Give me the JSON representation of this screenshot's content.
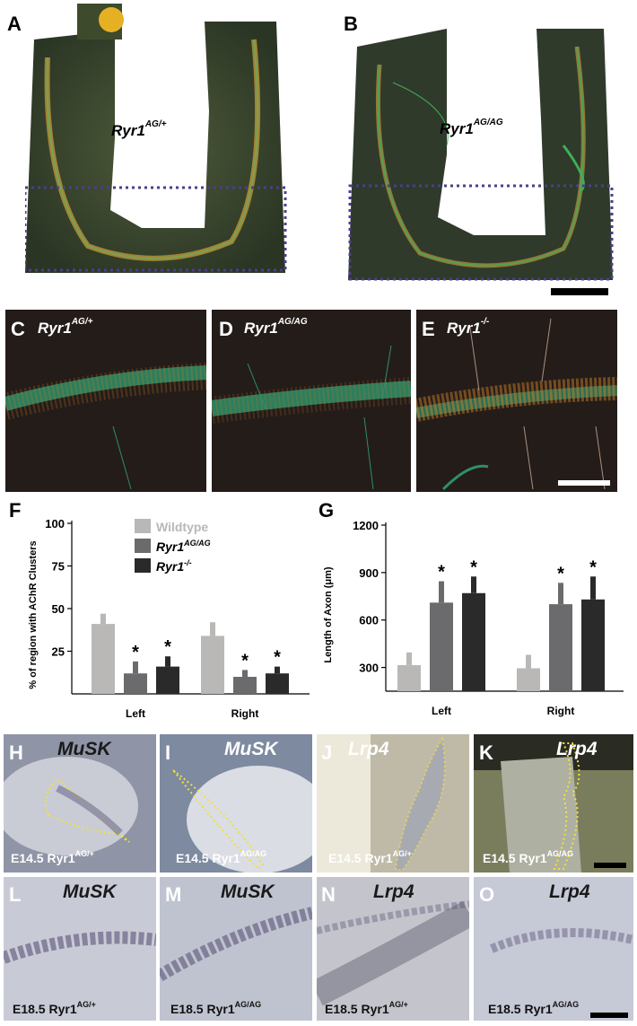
{
  "panels": {
    "A": {
      "label": "A",
      "genotype": "Ryr1",
      "genotype_sup": "AG/+"
    },
    "B": {
      "label": "B",
      "genotype": "Ryr1",
      "genotype_sup": "AG/AG"
    },
    "C": {
      "label": "C",
      "genotype": "Ryr1",
      "genotype_sup": "AG/+"
    },
    "D": {
      "label": "D",
      "genotype": "Ryr1",
      "genotype_sup": "AG/AG"
    },
    "E": {
      "label": "E",
      "genotype": "Ryr1",
      "genotype_sup": "-/-"
    },
    "F": {
      "label": "F"
    },
    "G": {
      "label": "G"
    },
    "H": {
      "label": "H",
      "gene": "MuSK",
      "stage": "E14.5 Ryr1",
      "stage_sup": "AG/+"
    },
    "I": {
      "label": "I",
      "gene": "MuSK",
      "stage": "E14.5 Ryr1",
      "stage_sup": "AG/AG"
    },
    "J": {
      "label": "J",
      "gene": "Lrp4",
      "stage": "E14.5 Ryr1",
      "stage_sup": "AG/+"
    },
    "K": {
      "label": "K",
      "gene": "Lrp4",
      "stage": "E14.5 Ryr1",
      "stage_sup": "AG/AG"
    },
    "L": {
      "label": "L",
      "gene": "MuSK",
      "stage": "E18.5 Ryr1",
      "stage_sup": "AG/+"
    },
    "M": {
      "label": "M",
      "gene": "MuSK",
      "stage": "E18.5 Ryr1",
      "stage_sup": "AG/AG"
    },
    "N": {
      "label": "N",
      "gene": "Lrp4",
      "stage": "E18.5 Ryr1",
      "stage_sup": "AG/+"
    },
    "O": {
      "label": "O",
      "gene": "Lrp4",
      "stage": "E18.5 Ryr1",
      "stage_sup": "AG/AG"
    }
  },
  "colors": {
    "wildtype": "#bab7b7",
    "ryr1_ag_ag": "#6b6a6c",
    "ryr1_null": "#2b2a2b",
    "outline_dash": "#4a3f8a",
    "dotted_outline": "#f2e13a"
  },
  "chart_data": [
    {
      "type": "bar",
      "panel": "F",
      "categories": [
        "Left",
        "Right"
      ],
      "series": [
        {
          "name": "Wildtype",
          "values": [
            41,
            34
          ],
          "errors": [
            6,
            8
          ]
        },
        {
          "name": "Ryr1",
          "name_sup": "AG/AG",
          "values": [
            12,
            10
          ],
          "errors": [
            7,
            4
          ]
        },
        {
          "name": "Ryr1",
          "name_sup": "-/-",
          "values": [
            16,
            12
          ],
          "errors": [
            6,
            4
          ]
        }
      ],
      "significance": [
        [
          "",
          "*",
          "*"
        ],
        [
          "",
          "*",
          "*"
        ]
      ],
      "ylabel": "% of  region with AChR Clusters",
      "yticks": [
        "25",
        "50",
        "75",
        "100"
      ],
      "ylim": [
        0,
        100
      ],
      "legend_placement": "top"
    },
    {
      "type": "bar",
      "panel": "G",
      "categories": [
        "Left",
        "Right"
      ],
      "series": [
        {
          "name": "Wildtype",
          "values": [
            315,
            295
          ],
          "errors": [
            80,
            85
          ]
        },
        {
          "name": "Ryr1 AG/AG",
          "values": [
            710,
            700
          ],
          "errors": [
            135,
            135
          ]
        },
        {
          "name": "Ryr1 -/-",
          "values": [
            770,
            730
          ],
          "errors": [
            105,
            145
          ]
        }
      ],
      "significance": [
        [
          "",
          "*",
          "*"
        ],
        [
          "",
          "*",
          "*"
        ]
      ],
      "ylabel": "Length of Axon  (μm)",
      "yticks": [
        "300",
        "600",
        "900",
        "1200"
      ],
      "ylim": [
        150,
        1200
      ]
    }
  ]
}
